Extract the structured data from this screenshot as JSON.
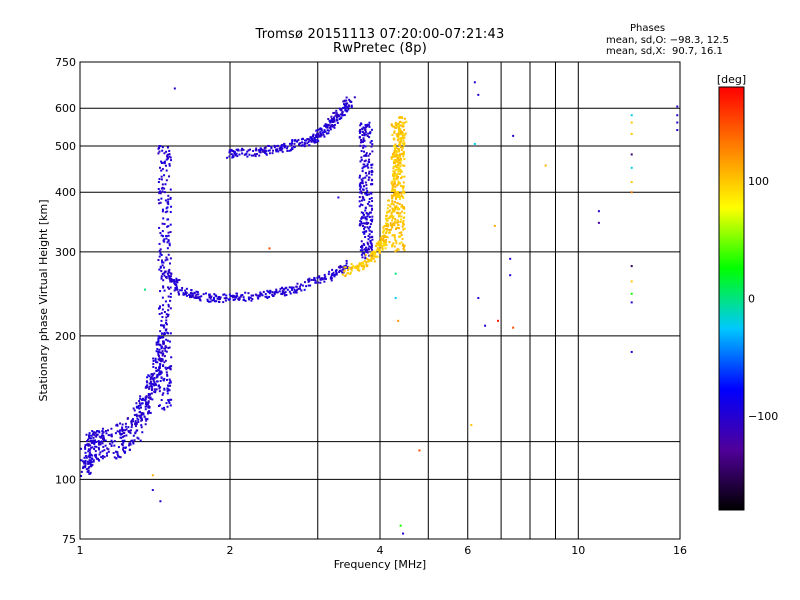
{
  "chart_data": {
    "type": "scatter",
    "title": "Tromsø 20151113 07:20:00-07:21:43",
    "subtitle": "RwPretec (8p)",
    "xlabel": "Frequency [MHz]",
    "ylabel": "Stationary phase Virtual Height [km]",
    "x_scale": "log",
    "y_scale": "log",
    "xlim": [
      1,
      16
    ],
    "ylim": [
      75,
      750
    ],
    "x_ticks": [
      1,
      2,
      4,
      6,
      10,
      16
    ],
    "x_tick_labels": [
      "1",
      "2",
      "4",
      "6",
      "10",
      "16"
    ],
    "y_ticks": [
      75,
      100,
      200,
      300,
      400,
      500,
      600,
      750
    ],
    "y_tick_labels": [
      "75",
      "100",
      "200",
      "300",
      "400",
      "500",
      "600",
      "750"
    ],
    "x_gridlines": [
      1,
      2,
      3,
      4,
      5,
      6,
      7,
      8,
      9,
      10,
      16
    ],
    "y_gridlines": [
      100,
      120,
      200,
      300,
      400,
      500,
      600
    ],
    "grid": true,
    "colorbar": {
      "label": "[deg]",
      "range": [
        -180,
        180
      ],
      "ticks": [
        -100,
        0,
        100
      ],
      "tick_labels": [
        "−100",
        "0",
        "100"
      ],
      "colors": [
        "#000000",
        "#50009a",
        "#0000ff",
        "#00c8ff",
        "#00ff00",
        "#ffff00",
        "#ff8000",
        "#ff0000"
      ]
    },
    "stats": {
      "heading": "Phases",
      "o_line": "mean, sd,O: −98.3, 12.5",
      "x_line": "mean, sd,X:  90.7, 16.1"
    },
    "traces": [
      {
        "name": "",
        "phase": -100,
        "kind": "lowband",
        "x_range": [
          1.02,
          1.5
        ],
        "points": [
          [
            1.02,
            108
          ],
          [
            1.05,
            116
          ],
          [
            1.1,
            118
          ],
          [
            1.2,
            120
          ],
          [
            1.3,
            130
          ],
          [
            1.38,
            150
          ],
          [
            1.43,
            170
          ],
          [
            1.47,
            200
          ]
        ]
      },
      {
        "name": "",
        "phase": -100,
        "kind": "vertical",
        "x": 1.48,
        "y_range": [
          140,
          500
        ]
      },
      {
        "name": "",
        "phase": -100,
        "kind": "curve",
        "points": [
          [
            1.5,
            270
          ],
          [
            1.6,
            248
          ],
          [
            1.8,
            240
          ],
          [
            2.0,
            240
          ],
          [
            2.3,
            243
          ],
          [
            2.6,
            248
          ],
          [
            2.9,
            258
          ],
          [
            3.2,
            268
          ],
          [
            3.5,
            282
          ]
        ]
      },
      {
        "name": "",
        "phase": -100,
        "kind": "curve",
        "points": [
          [
            2.0,
            480
          ],
          [
            2.3,
            487
          ],
          [
            2.6,
            498
          ],
          [
            2.9,
            515
          ],
          [
            3.1,
            540
          ],
          [
            3.3,
            580
          ],
          [
            3.5,
            625
          ]
        ]
      },
      {
        "name": "",
        "phase": -100,
        "kind": "vertical",
        "x": 3.75,
        "y_range": [
          290,
          560
        ]
      },
      {
        "name": "",
        "phase": 100,
        "kind": "curve",
        "points": [
          [
            3.4,
            272
          ],
          [
            3.7,
            282
          ],
          [
            3.95,
            300
          ],
          [
            4.1,
            320
          ],
          [
            4.2,
            360
          ],
          [
            4.3,
            420
          ],
          [
            4.4,
            500
          ],
          [
            4.45,
            580
          ]
        ]
      },
      {
        "name": "",
        "phase": 100,
        "kind": "vertical",
        "x": 4.35,
        "y_range": [
          300,
          560
        ]
      }
    ],
    "scattered_points": [
      {
        "x": 1.55,
        "y": 660,
        "phase": -100
      },
      {
        "x": 1.4,
        "y": 95,
        "phase": -100
      },
      {
        "x": 1.45,
        "y": 90,
        "phase": -100
      },
      {
        "x": 1.4,
        "y": 102,
        "phase": 110
      },
      {
        "x": 1.35,
        "y": 250,
        "phase": 0
      },
      {
        "x": 2.4,
        "y": 305,
        "phase": 150
      },
      {
        "x": 3.3,
        "y": 390,
        "phase": -100
      },
      {
        "x": 4.3,
        "y": 270,
        "phase": 0
      },
      {
        "x": 4.3,
        "y": 240,
        "phase": -20
      },
      {
        "x": 4.35,
        "y": 215,
        "phase": 120
      },
      {
        "x": 4.4,
        "y": 80,
        "phase": 30
      },
      {
        "x": 4.45,
        "y": 77,
        "phase": -100
      },
      {
        "x": 4.8,
        "y": 115,
        "phase": 150
      },
      {
        "x": 6.1,
        "y": 130,
        "phase": 100
      },
      {
        "x": 6.2,
        "y": 680,
        "phase": -100
      },
      {
        "x": 6.3,
        "y": 640,
        "phase": -100
      },
      {
        "x": 6.2,
        "y": 505,
        "phase": -20
      },
      {
        "x": 6.3,
        "y": 240,
        "phase": -100
      },
      {
        "x": 6.5,
        "y": 210,
        "phase": -100
      },
      {
        "x": 6.8,
        "y": 340,
        "phase": 110
      },
      {
        "x": 6.9,
        "y": 215,
        "phase": 170
      },
      {
        "x": 7.3,
        "y": 290,
        "phase": -100
      },
      {
        "x": 7.3,
        "y": 268,
        "phase": -100
      },
      {
        "x": 7.4,
        "y": 208,
        "phase": 150
      },
      {
        "x": 7.4,
        "y": 525,
        "phase": -100
      },
      {
        "x": 8.6,
        "y": 455,
        "phase": 110
      },
      {
        "x": 11.0,
        "y": 365,
        "phase": -100
      },
      {
        "x": 11.0,
        "y": 345,
        "phase": -120
      },
      {
        "x": 12.8,
        "y": 580,
        "phase": -20
      },
      {
        "x": 12.8,
        "y": 560,
        "phase": 100
      },
      {
        "x": 12.8,
        "y": 530,
        "phase": 100
      },
      {
        "x": 12.8,
        "y": 480,
        "phase": -140
      },
      {
        "x": 12.8,
        "y": 450,
        "phase": -20
      },
      {
        "x": 12.8,
        "y": 420,
        "phase": 100
      },
      {
        "x": 12.8,
        "y": 400,
        "phase": 130
      },
      {
        "x": 12.8,
        "y": 280,
        "phase": -150
      },
      {
        "x": 12.8,
        "y": 260,
        "phase": 100
      },
      {
        "x": 12.8,
        "y": 245,
        "phase": 30
      },
      {
        "x": 12.8,
        "y": 235,
        "phase": -100
      },
      {
        "x": 12.8,
        "y": 185,
        "phase": -100
      },
      {
        "x": 15.8,
        "y": 605,
        "phase": -100
      },
      {
        "x": 15.8,
        "y": 580,
        "phase": -100
      },
      {
        "x": 15.8,
        "y": 560,
        "phase": -100
      },
      {
        "x": 15.8,
        "y": 540,
        "phase": -100
      }
    ]
  }
}
